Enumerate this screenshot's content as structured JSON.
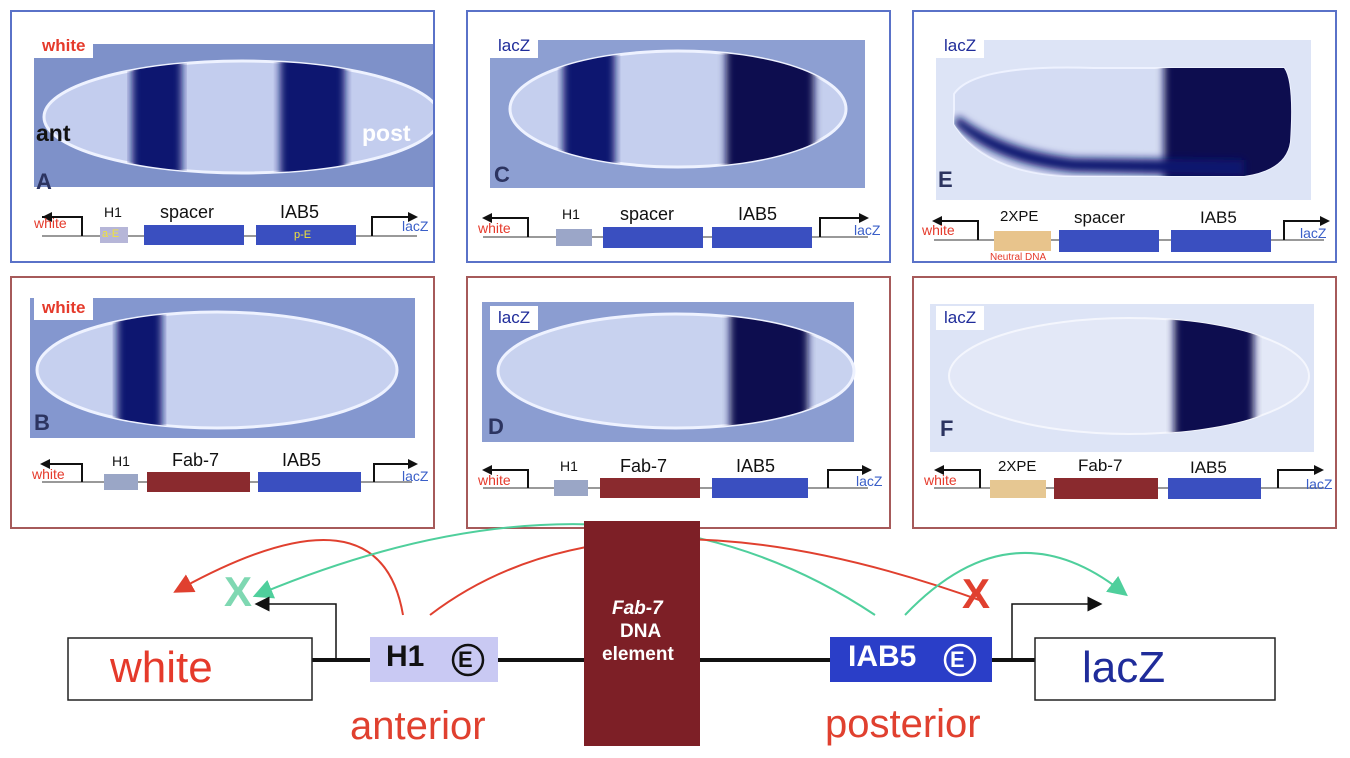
{
  "panels": {
    "A": {
      "letter": "A",
      "reporter": "white",
      "ant": "ant",
      "post": "post",
      "gene_left": "white",
      "gene_right": "lacZ",
      "el1": "H1",
      "el1_sub": "a-E",
      "el2": "spacer",
      "el3": "IAB5",
      "el3_sub": "p-E"
    },
    "B": {
      "letter": "B",
      "reporter": "white",
      "gene_left": "white",
      "gene_right": "lacZ",
      "el1": "H1",
      "el2": "Fab-7",
      "el3": "IAB5"
    },
    "C": {
      "letter": "C",
      "reporter": "lacZ",
      "gene_left": "white",
      "gene_right": "lacZ",
      "el1": "H1",
      "el2": "spacer",
      "el3": "IAB5"
    },
    "D": {
      "letter": "D",
      "reporter": "lacZ",
      "gene_left": "white",
      "gene_right": "lacZ",
      "el1": "H1",
      "el2": "Fab-7",
      "el3": "IAB5"
    },
    "E": {
      "letter": "E",
      "reporter": "lacZ",
      "gene_left": "white",
      "gene_right": "lacZ",
      "el1": "2XPE",
      "el1_sub": "Neutral DNA",
      "el2": "spacer",
      "el3": "IAB5"
    },
    "F": {
      "letter": "F",
      "reporter": "lacZ",
      "gene_left": "white",
      "gene_right": "lacZ",
      "el1": "2XPE",
      "el2": "Fab-7",
      "el3": "IAB5"
    }
  },
  "bottom": {
    "white": "white",
    "lacz": "lacZ",
    "h1": "H1",
    "iab5": "IAB5",
    "enhancer_mark": "E",
    "fab7_italic": "Fab-7",
    "fab7_line2": "DNA",
    "fab7_line3": "element",
    "anterior": "anterior",
    "posterior": "posterior",
    "x_green": "X",
    "x_red": "X"
  },
  "colors": {
    "stain": "#0e1870",
    "embryo": "#b9c6ec",
    "white_red": "#e53a2b",
    "lacz_blue": "#1f2c9a",
    "fab7": "#7d1f26",
    "h1_box": "#c9c9f3",
    "iab5_box": "#2a3ec8",
    "green_arrow": "#4fcf9c",
    "red_arrow": "#e0402f"
  }
}
